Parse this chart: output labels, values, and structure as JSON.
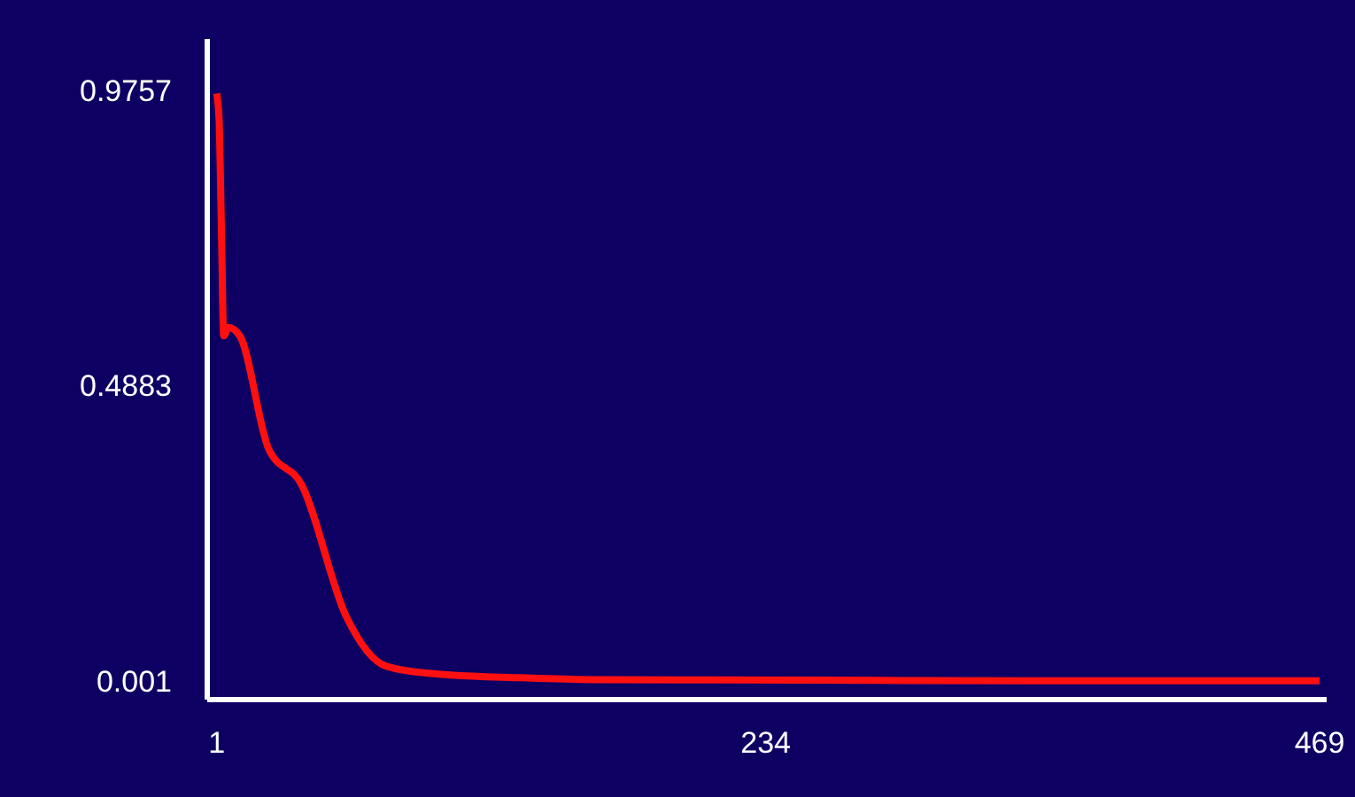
{
  "chart_data": {
    "type": "line",
    "x": [
      1,
      2,
      3,
      4,
      6,
      11,
      23,
      37,
      56,
      73,
      95,
      130,
      160,
      250,
      350,
      469
    ],
    "series": [
      {
        "color": "#ff1010",
        "values": [
          0.97,
          0.93,
          0.75,
          0.57,
          0.584,
          0.569,
          0.384,
          0.325,
          0.107,
          0.025,
          0.012,
          0.006,
          0.003,
          0.002,
          0.001,
          0.001
        ]
      }
    ],
    "xlim": [
      -3,
      472
    ],
    "xticks": [
      1,
      234,
      469
    ],
    "ylim": [
      -0.03,
      1.06
    ],
    "yticks": [
      0.001,
      0.4883,
      0.9757
    ],
    "grid": false,
    "legend": false,
    "marker": "none",
    "line_style": "solid"
  }
}
